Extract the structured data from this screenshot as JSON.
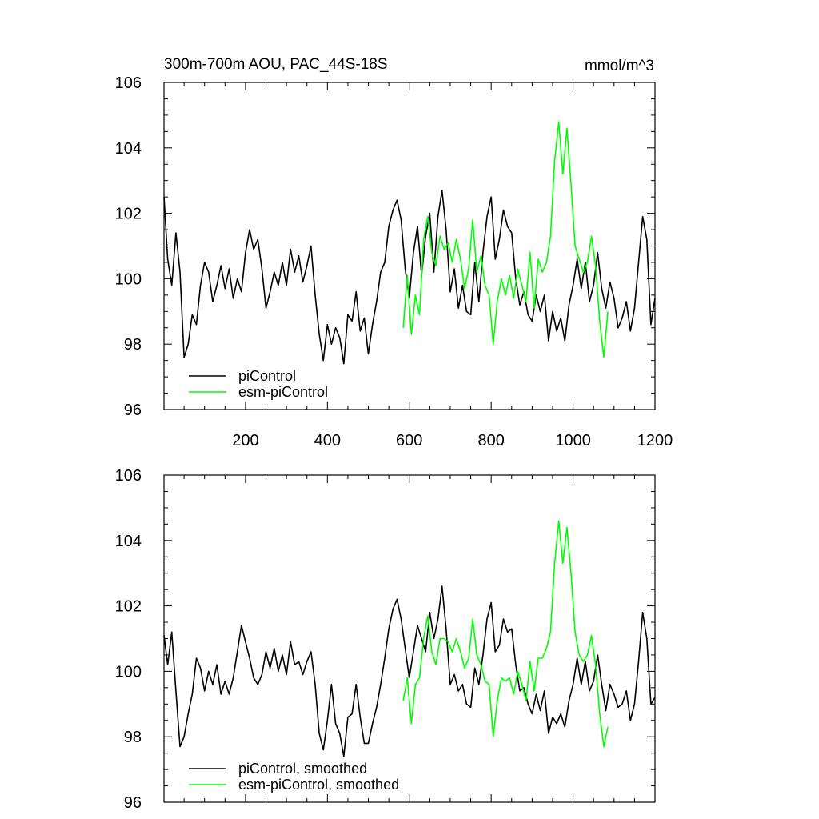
{
  "chart_data": [
    {
      "type": "line",
      "title": "300m-700m AOU, PAC_44S-18S",
      "units": "mmol/m^3",
      "xlim": [
        1,
        1200
      ],
      "ylim": [
        96,
        106
      ],
      "xticks": [
        200,
        400,
        600,
        800,
        1000,
        1200
      ],
      "yticks": [
        96,
        98,
        100,
        102,
        104,
        106
      ],
      "grid": false,
      "legend_position": "bottom-left",
      "series": [
        {
          "name": "piControl",
          "color": "#000000",
          "x": [
            1,
            10,
            20,
            30,
            40,
            50,
            60,
            70,
            80,
            90,
            100,
            110,
            120,
            130,
            140,
            150,
            160,
            170,
            180,
            190,
            200,
            210,
            220,
            230,
            240,
            250,
            260,
            270,
            280,
            290,
            300,
            310,
            320,
            330,
            340,
            350,
            360,
            370,
            380,
            390,
            400,
            410,
            420,
            430,
            440,
            450,
            460,
            470,
            480,
            490,
            500,
            510,
            520,
            530,
            540,
            550,
            560,
            570,
            580,
            590,
            600,
            610,
            620,
            630,
            640,
            650,
            660,
            670,
            680,
            690,
            700,
            710,
            720,
            730,
            740,
            750,
            760,
            770,
            780,
            790,
            800,
            810,
            820,
            830,
            840,
            850,
            860,
            870,
            880,
            890,
            900,
            910,
            920,
            930,
            940,
            950,
            960,
            970,
            980,
            990,
            1000,
            1010,
            1020,
            1030,
            1040,
            1050,
            1060,
            1070,
            1080,
            1090,
            1100,
            1110,
            1120,
            1130,
            1140,
            1150,
            1160,
            1170,
            1180,
            1190,
            1200
          ],
          "y": [
            102.5,
            100.6,
            99.8,
            101.4,
            100.2,
            97.6,
            98.0,
            98.9,
            98.6,
            99.8,
            100.5,
            100.2,
            99.3,
            99.8,
            100.4,
            99.7,
            100.3,
            99.4,
            100.0,
            99.6,
            100.8,
            101.5,
            100.9,
            101.2,
            100.3,
            99.1,
            99.6,
            100.2,
            99.8,
            100.5,
            99.8,
            100.9,
            100.2,
            100.7,
            99.9,
            100.4,
            101.0,
            99.5,
            98.3,
            97.5,
            98.6,
            98.0,
            98.5,
            98.2,
            97.4,
            98.9,
            98.7,
            99.6,
            98.4,
            98.8,
            97.7,
            98.6,
            99.3,
            100.2,
            100.5,
            101.6,
            102.1,
            102.4,
            101.8,
            100.3,
            99.4,
            100.8,
            101.6,
            100.1,
            101.3,
            102.0,
            100.2,
            101.9,
            102.7,
            101.5,
            99.6,
            100.3,
            99.1,
            99.8,
            99.0,
            98.9,
            100.5,
            99.3,
            100.8,
            101.9,
            102.5,
            100.6,
            101.2,
            102.1,
            101.6,
            101.4,
            100.0,
            99.2,
            99.6,
            98.9,
            98.7,
            99.5,
            99.0,
            99.5,
            98.1,
            99.0,
            98.4,
            98.8,
            98.1,
            99.2,
            99.8,
            100.6,
            99.7,
            100.5,
            99.3,
            99.8,
            100.8,
            99.7,
            99.1,
            99.9,
            99.4,
            98.5,
            98.8,
            99.3,
            98.4,
            99.1,
            100.5,
            101.9,
            101.2,
            98.6,
            99.4
          ]
        },
        {
          "name": "esm-piControl",
          "color": "#00ff00",
          "x": [
            585,
            595,
            605,
            615,
            625,
            635,
            645,
            655,
            665,
            675,
            685,
            695,
            705,
            715,
            725,
            735,
            745,
            755,
            765,
            775,
            785,
            795,
            805,
            815,
            825,
            835,
            845,
            855,
            865,
            875,
            885,
            895,
            905,
            915,
            925,
            935,
            945,
            955,
            965,
            975,
            985,
            995,
            1005,
            1015,
            1025,
            1035,
            1045,
            1055,
            1065,
            1075,
            1085
          ],
          "y": [
            98.5,
            100.1,
            98.3,
            99.5,
            98.9,
            101.2,
            101.9,
            100.8,
            100.4,
            101.3,
            100.9,
            101.1,
            100.5,
            101.2,
            100.6,
            99.7,
            100.3,
            101.8,
            100.2,
            100.7,
            99.8,
            99.5,
            98.0,
            99.3,
            100.0,
            99.5,
            100.1,
            99.4,
            100.3,
            99.8,
            99.3,
            100.8,
            99.1,
            100.6,
            100.2,
            100.5,
            101.3,
            103.6,
            104.8,
            103.2,
            104.6,
            102.9,
            101.0,
            100.6,
            100.2,
            100.5,
            101.3,
            100.4,
            98.7,
            97.6,
            99.0
          ]
        }
      ]
    },
    {
      "type": "line",
      "title": "",
      "xlim": [
        1,
        1200
      ],
      "ylim": [
        96,
        106
      ],
      "yticks": [
        96,
        98,
        100,
        102,
        104,
        106
      ],
      "grid": false,
      "legend_position": "bottom-left",
      "series": [
        {
          "name": "piControl, smoothed",
          "color": "#000000",
          "x": [
            1,
            10,
            20,
            30,
            40,
            50,
            60,
            70,
            80,
            90,
            100,
            110,
            120,
            130,
            140,
            150,
            160,
            170,
            180,
            190,
            200,
            210,
            220,
            230,
            240,
            250,
            260,
            270,
            280,
            290,
            300,
            310,
            320,
            330,
            340,
            350,
            360,
            370,
            380,
            390,
            400,
            410,
            420,
            430,
            440,
            450,
            460,
            470,
            480,
            490,
            500,
            510,
            520,
            530,
            540,
            550,
            560,
            570,
            580,
            590,
            600,
            610,
            620,
            630,
            640,
            650,
            660,
            670,
            680,
            690,
            700,
            710,
            720,
            730,
            740,
            750,
            760,
            770,
            780,
            790,
            800,
            810,
            820,
            830,
            840,
            850,
            860,
            870,
            880,
            890,
            900,
            910,
            920,
            930,
            940,
            950,
            960,
            970,
            980,
            990,
            1000,
            1010,
            1020,
            1030,
            1040,
            1050,
            1060,
            1070,
            1080,
            1090,
            1100,
            1110,
            1120,
            1130,
            1140,
            1150,
            1160,
            1170,
            1180,
            1190,
            1200
          ],
          "y": [
            101.1,
            100.2,
            101.2,
            99.4,
            97.7,
            98.0,
            98.7,
            99.3,
            100.4,
            100.1,
            99.4,
            100.0,
            99.6,
            100.2,
            99.3,
            99.7,
            99.3,
            99.8,
            100.6,
            101.4,
            100.9,
            100.4,
            99.8,
            99.6,
            99.9,
            100.6,
            100.1,
            100.7,
            100.0,
            100.5,
            99.9,
            100.9,
            100.2,
            100.3,
            99.9,
            100.3,
            100.6,
            99.6,
            98.1,
            97.6,
            98.5,
            99.6,
            98.4,
            98.1,
            97.4,
            98.6,
            98.7,
            99.6,
            98.6,
            97.8,
            97.8,
            98.4,
            98.9,
            99.6,
            100.4,
            101.3,
            101.9,
            102.2,
            101.6,
            100.7,
            99.8,
            100.6,
            101.4,
            101.0,
            100.6,
            101.8,
            101.0,
            101.6,
            102.6,
            101.3,
            99.6,
            99.9,
            99.4,
            99.6,
            99.0,
            98.9,
            100.1,
            99.6,
            100.5,
            101.6,
            102.1,
            100.6,
            100.8,
            101.6,
            101.2,
            101.3,
            100.2,
            99.4,
            99.5,
            99.0,
            98.7,
            99.3,
            98.8,
            99.4,
            98.1,
            98.6,
            98.4,
            98.7,
            98.3,
            99.1,
            99.6,
            100.4,
            99.6,
            100.3,
            99.4,
            99.7,
            100.5,
            99.6,
            98.8,
            99.6,
            99.3,
            98.9,
            99.0,
            99.4,
            98.5,
            99.0,
            100.3,
            101.8,
            101.0,
            99.0,
            99.2
          ]
        },
        {
          "name": "esm-piControl, smoothed",
          "color": "#00ff00",
          "x": [
            585,
            595,
            605,
            615,
            625,
            635,
            645,
            655,
            665,
            675,
            685,
            695,
            705,
            715,
            725,
            735,
            745,
            755,
            765,
            775,
            785,
            795,
            805,
            815,
            825,
            835,
            845,
            855,
            865,
            875,
            885,
            895,
            905,
            915,
            925,
            935,
            945,
            955,
            965,
            975,
            985,
            995,
            1005,
            1015,
            1025,
            1035,
            1045,
            1055,
            1065,
            1075,
            1085
          ],
          "y": [
            99.1,
            99.8,
            98.4,
            99.6,
            99.8,
            101.0,
            101.7,
            100.6,
            100.2,
            101.0,
            101.0,
            100.9,
            100.6,
            101.0,
            100.6,
            100.1,
            100.4,
            101.6,
            100.5,
            100.2,
            99.7,
            99.6,
            98.0,
            99.1,
            99.8,
            99.7,
            99.8,
            99.3,
            100.0,
            99.6,
            99.1,
            100.3,
            99.4,
            100.4,
            100.4,
            100.7,
            101.2,
            103.3,
            104.6,
            103.3,
            104.4,
            103.0,
            101.2,
            100.5,
            100.3,
            100.5,
            101.1,
            100.2,
            98.7,
            97.7,
            98.3
          ]
        }
      ]
    }
  ]
}
